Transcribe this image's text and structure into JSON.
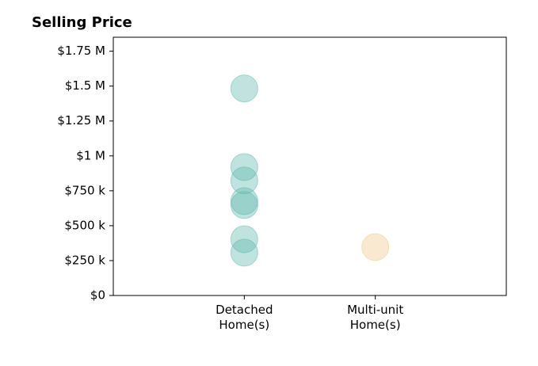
{
  "chart_data": {
    "type": "scatter",
    "title": "Selling Price",
    "categories": [
      "Detached\nHome(s)",
      "Multi-unit\nHome(s)"
    ],
    "series": [
      {
        "color": "#5fb8ad",
        "values": [
          1483000,
          920000,
          824000,
          676000,
          648000,
          403000,
          307000
        ]
      },
      {
        "color": "#f0c98a",
        "values": [
          347000
        ]
      }
    ],
    "xlim": [
      -1,
      2
    ],
    "ylim": [
      0,
      1850000
    ],
    "yticks": [
      {
        "value": 0,
        "label": "$0"
      },
      {
        "value": 250000,
        "label": "$250 k"
      },
      {
        "value": 500000,
        "label": "$500 k"
      },
      {
        "value": 750000,
        "label": "$750 k"
      },
      {
        "value": 1000000,
        "label": "$1 M"
      },
      {
        "value": 1250000,
        "label": "$1.25 M"
      },
      {
        "value": 1500000,
        "label": "$1.5 M"
      },
      {
        "value": 1750000,
        "label": "$1.75 M"
      }
    ],
    "grid": false
  }
}
